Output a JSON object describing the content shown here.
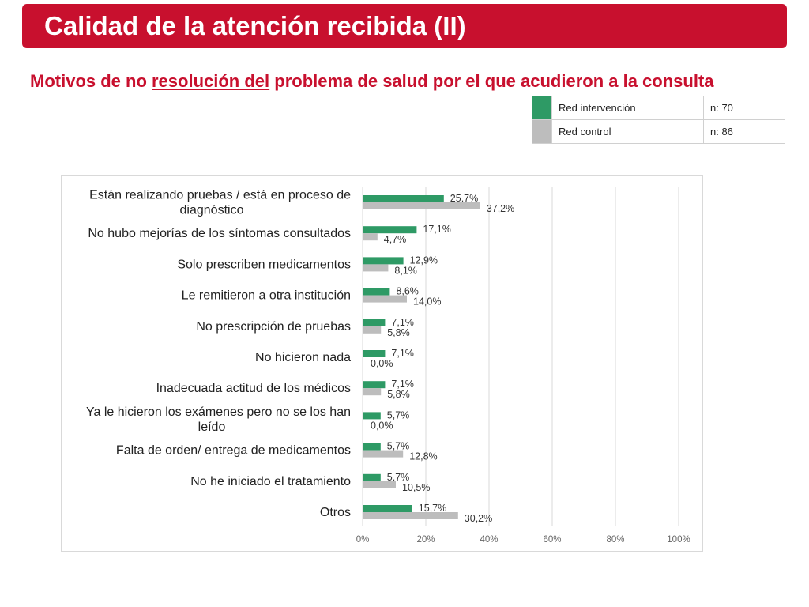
{
  "slide": {
    "title": "Calidad de la atención recibida (II)",
    "subtitle_part1": "Motivos de no ",
    "subtitle_underlined": "resolución del",
    "subtitle_part2": " problema de salud por el que acudieron a la consulta"
  },
  "legend": [
    {
      "name": "Red intervención",
      "n": "n: 70",
      "color": "#2e9a65"
    },
    {
      "name": "Red control",
      "n": "n: 86",
      "color": "#bdbdbd"
    }
  ],
  "chart_data": {
    "type": "bar",
    "orientation": "horizontal",
    "categories": [
      [
        "Están realizando pruebas / está en proceso de",
        "diagnóstico"
      ],
      [
        "No hubo mejorías de los síntomas consultados"
      ],
      [
        "Solo prescriben medicamentos"
      ],
      [
        "Le remitieron a otra institución"
      ],
      [
        "No prescripción de pruebas"
      ],
      [
        "No hicieron nada"
      ],
      [
        "Inadecuada actitud de los médicos"
      ],
      [
        "Ya le hicieron los exámenes pero no se los han",
        "leído"
      ],
      [
        "Falta de orden/ entrega de medicamentos"
      ],
      [
        "No he iniciado el tratamiento"
      ],
      [
        "Otros"
      ]
    ],
    "series": [
      {
        "name": "Red intervención",
        "color": "#2e9a65",
        "values": [
          25.7,
          17.1,
          12.9,
          8.6,
          7.1,
          7.1,
          7.1,
          5.7,
          5.7,
          5.7,
          15.7
        ],
        "labels": [
          "25,7%",
          "17,1%",
          "12,9%",
          "8,6%",
          "7,1%",
          "7,1%",
          "7,1%",
          "5,7%",
          "5,7%",
          "5,7%",
          "15,7%"
        ]
      },
      {
        "name": "Red control",
        "color": "#bdbdbd",
        "values": [
          37.2,
          4.7,
          8.1,
          14.0,
          5.8,
          0.0,
          5.8,
          0.0,
          12.8,
          10.5,
          30.2
        ],
        "labels": [
          "37,2%",
          "4,7%",
          "8,1%",
          "14,0%",
          "5,8%",
          "0,0%",
          "5,8%",
          "0,0%",
          "12,8%",
          "10,5%",
          "30,2%"
        ]
      }
    ],
    "x_ticks": [
      "0%",
      "20%",
      "40%",
      "60%",
      "80%",
      "100%"
    ],
    "xlim": [
      0,
      100
    ],
    "grid": true,
    "legend_placement": "top-right table"
  }
}
